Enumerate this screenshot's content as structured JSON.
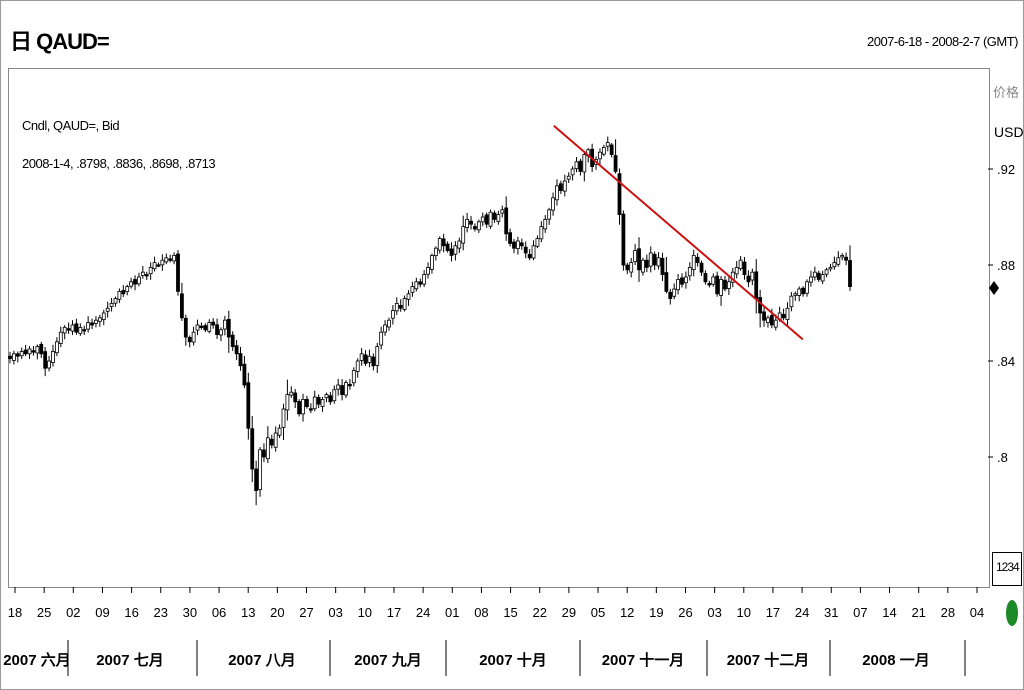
{
  "header": {
    "title": "日 QAUD=",
    "date_range": "2007-6-18 - 2008-2-7 (GMT)"
  },
  "legend": {
    "series_name": "Cndl, QAUD=, Bid",
    "values": "2008-1-4, .8798, .8836, .8698, .8713"
  },
  "y_axis": {
    "unit_line1": "价格",
    "unit_line2": "USD",
    "scale_label": "1234"
  },
  "colors": {
    "candle": "#000000",
    "trendline": "#cc1111",
    "status_dot": "#1d8a2a"
  },
  "chart_data": {
    "type": "candlestick",
    "title": "",
    "ylim": [
      0.76,
      0.95
    ],
    "y_ticks": [
      {
        "label": ".92",
        "value": 0.92
      },
      {
        "label": ".88",
        "value": 0.88
      },
      {
        "label": ".84",
        "value": 0.84
      },
      {
        "label": ".8",
        "value": 0.8
      }
    ],
    "x_tick_labels": [
      "18",
      "25",
      "02",
      "09",
      "16",
      "23",
      "30",
      "06",
      "13",
      "20",
      "27",
      "03",
      "10",
      "17",
      "24",
      "01",
      "08",
      "15",
      "22",
      "29",
      "05",
      "12",
      "19",
      "26",
      "03",
      "10",
      "17",
      "24",
      "31",
      "07",
      "14",
      "21",
      "28",
      "04"
    ],
    "months": [
      "2007 六月",
      "2007 七月",
      "2007 八月",
      "2007 九月",
      "2007 十月",
      "2007 十一月",
      "2007 十二月",
      "2008 一月"
    ],
    "series": [
      {
        "name": "Cndl, QAUD=, Bid",
        "close": [
          0.841,
          0.843,
          0.842,
          0.844,
          0.843,
          0.845,
          0.844,
          0.846,
          0.843,
          0.837,
          0.84,
          0.844,
          0.848,
          0.852,
          0.854,
          0.853,
          0.855,
          0.852,
          0.854,
          0.853,
          0.856,
          0.855,
          0.857,
          0.858,
          0.86,
          0.862,
          0.864,
          0.866,
          0.869,
          0.868,
          0.871,
          0.873,
          0.872,
          0.875,
          0.877,
          0.876,
          0.879,
          0.881,
          0.88,
          0.882,
          0.883,
          0.882,
          0.884,
          0.869,
          0.858,
          0.85,
          0.848,
          0.852,
          0.855,
          0.854,
          0.853,
          0.856,
          0.855,
          0.851,
          0.853,
          0.857,
          0.85,
          0.846,
          0.843,
          0.838,
          0.83,
          0.812,
          0.795,
          0.786,
          0.803,
          0.8,
          0.808,
          0.805,
          0.81,
          0.812,
          0.82,
          0.826,
          0.827,
          0.823,
          0.818,
          0.824,
          0.821,
          0.82,
          0.825,
          0.822,
          0.824,
          0.826,
          0.823,
          0.828,
          0.83,
          0.826,
          0.831,
          0.83,
          0.836,
          0.84,
          0.843,
          0.839,
          0.842,
          0.838,
          0.846,
          0.852,
          0.855,
          0.857,
          0.861,
          0.864,
          0.862,
          0.866,
          0.868,
          0.871,
          0.873,
          0.872,
          0.876,
          0.879,
          0.884,
          0.887,
          0.891,
          0.888,
          0.886,
          0.884,
          0.888,
          0.89,
          0.896,
          0.899,
          0.897,
          0.895,
          0.898,
          0.9,
          0.897,
          0.902,
          0.899,
          0.901,
          0.903,
          0.893,
          0.889,
          0.887,
          0.89,
          0.888,
          0.885,
          0.883,
          0.888,
          0.891,
          0.896,
          0.899,
          0.903,
          0.908,
          0.913,
          0.911,
          0.915,
          0.917,
          0.92,
          0.923,
          0.919,
          0.926,
          0.928,
          0.921,
          0.924,
          0.927,
          0.929,
          0.931,
          0.926,
          0.919,
          0.901,
          0.88,
          0.878,
          0.881,
          0.886,
          0.878,
          0.882,
          0.879,
          0.885,
          0.88,
          0.883,
          0.876,
          0.869,
          0.866,
          0.87,
          0.874,
          0.872,
          0.875,
          0.879,
          0.884,
          0.881,
          0.877,
          0.873,
          0.872,
          0.875,
          0.868,
          0.874,
          0.87,
          0.873,
          0.877,
          0.879,
          0.882,
          0.876,
          0.873,
          0.877,
          0.866,
          0.86,
          0.857,
          0.858,
          0.855,
          0.857,
          0.86,
          0.858,
          0.862,
          0.867,
          0.868,
          0.87,
          0.868,
          0.873,
          0.875,
          0.877,
          0.874,
          0.876,
          0.878,
          0.879,
          0.881,
          0.883,
          0.884,
          0.882,
          0.871
        ]
      }
    ],
    "trendline": {
      "from": {
        "date": "2007-11-07",
        "value": 0.938
      },
      "to": {
        "date": "2008-01-11",
        "value": 0.849
      }
    }
  }
}
